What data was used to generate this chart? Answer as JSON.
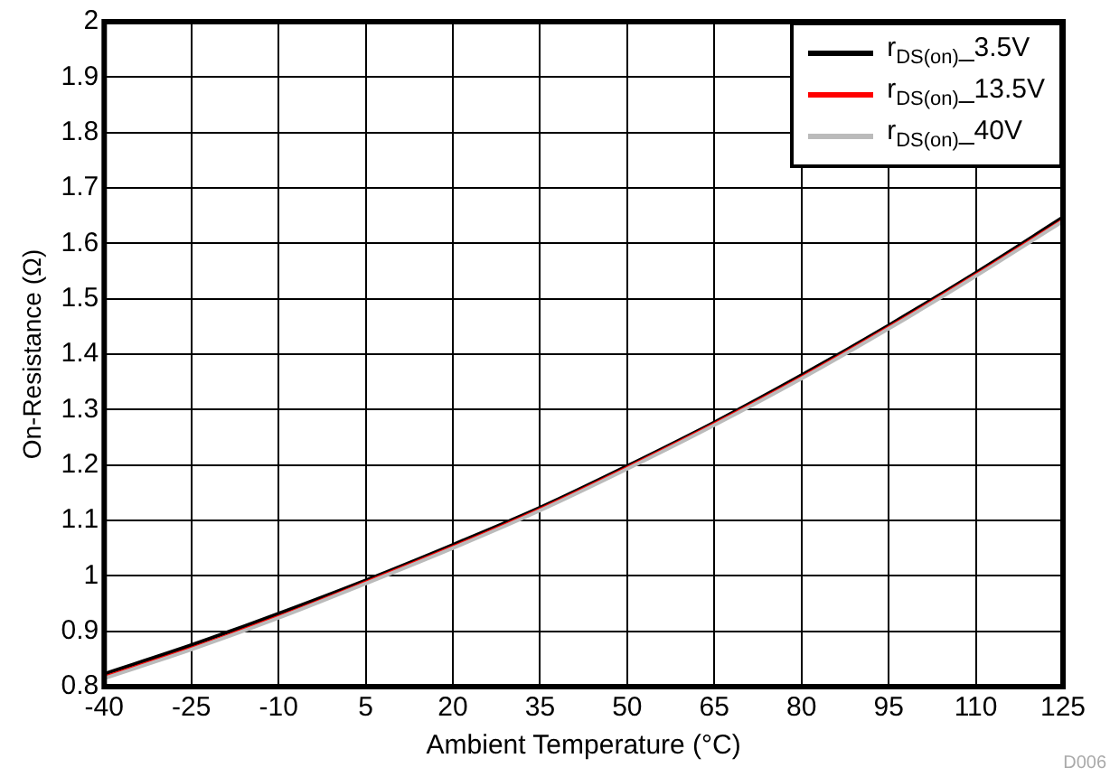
{
  "chart_data": {
    "type": "line",
    "xlabel": "Ambient Temperature (°C)",
    "ylabel": "On-Resistance (Ω)",
    "x": [
      -40,
      -25,
      -10,
      5,
      20,
      35,
      50,
      65,
      80,
      95,
      110,
      125
    ],
    "series": [
      {
        "name": "r$_{DS(on)}$_3.5V",
        "color": "#000000",
        "values": [
          0.823,
          0.875,
          0.932,
          0.992,
          1.056,
          1.123,
          1.198,
          1.277,
          1.362,
          1.452,
          1.547,
          1.647
        ]
      },
      {
        "name": "r$_{DS(on)}$_13.5V",
        "color": "#ff0000",
        "values": [
          0.817,
          0.869,
          0.926,
          0.988,
          1.052,
          1.12,
          1.195,
          1.274,
          1.358,
          1.448,
          1.543,
          1.642
        ]
      },
      {
        "name": "r$_{DS(on)}$_40V",
        "color": "#bbbbbb",
        "values": [
          0.815,
          0.867,
          0.924,
          0.986,
          1.05,
          1.118,
          1.193,
          1.272,
          1.356,
          1.446,
          1.541,
          1.64
        ]
      }
    ],
    "xlim": [
      -40,
      125
    ],
    "xticks": [
      -40,
      -25,
      -10,
      5,
      20,
      35,
      50,
      65,
      80,
      95,
      110,
      125
    ],
    "ylim": [
      0.8,
      2
    ],
    "yticks": [
      0.8,
      0.9,
      1,
      1.1,
      1.2,
      1.3,
      1.4,
      1.5,
      1.6,
      1.7,
      1.8,
      1.9,
      2
    ],
    "grid": true,
    "legend": "top right",
    "marker": "none",
    "line_style": "solid",
    "annotations": [
      "D006"
    ]
  }
}
